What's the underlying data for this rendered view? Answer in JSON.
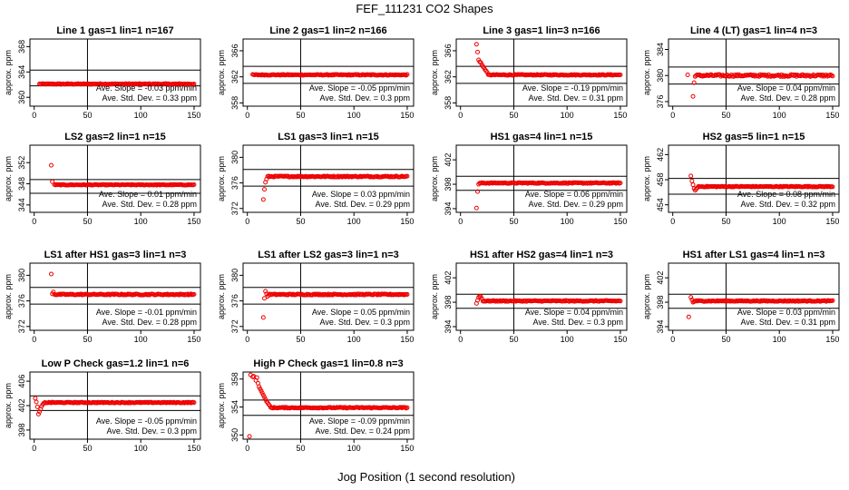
{
  "title": "FEF_111231  CO2 Shapes",
  "xlabel": "Jog Position (1 second resolution)",
  "chart_data": [
    {
      "type": "scatter",
      "title": "Line 1 gas=1 lin=1 n=167",
      "ylabel": "approx. ppm",
      "xlim": [
        -4,
        156
      ],
      "ylim": [
        358.6,
        369.2
      ],
      "yticks": [
        360,
        364,
        368
      ],
      "xticks": [
        0,
        50,
        100,
        150
      ],
      "hlines": [
        364.3,
        361.8
      ],
      "vline": 50,
      "base": 362.1,
      "noise": 0.07,
      "start": 5,
      "end": 150,
      "outliers": [],
      "transient": [],
      "slope_text": "Ave. Slope = -0.03  ppm/min",
      "std_text": "Ave. Std. Dev. = 0.33  ppm"
    },
    {
      "type": "scatter",
      "title": "Line 2 gas=1 lin=2 n=166",
      "ylabel": "approx. ppm",
      "xlim": [
        -4,
        156
      ],
      "ylim": [
        357.5,
        367.8
      ],
      "yticks": [
        358,
        362,
        366
      ],
      "xticks": [
        0,
        50,
        100,
        150
      ],
      "hlines": [
        363.6,
        361.0
      ],
      "vline": 50,
      "base": 362.3,
      "noise": 0.07,
      "start": 5,
      "end": 150,
      "outliers": [],
      "transient": [],
      "slope_text": "Ave. Slope = -0.05  ppm/min",
      "std_text": "Ave. Std. Dev. = 0.3  ppm"
    },
    {
      "type": "scatter",
      "title": "Line 3 gas=1 lin=3 n=166",
      "ylabel": "approx. ppm",
      "xlim": [
        -4,
        156
      ],
      "ylim": [
        357.5,
        367.8
      ],
      "yticks": [
        358,
        362,
        366
      ],
      "xticks": [
        0,
        50,
        100,
        150
      ],
      "hlines": [
        363.6,
        361.0
      ],
      "vline": 50,
      "base": 362.3,
      "noise": 0.07,
      "start": 26,
      "end": 150,
      "outliers": [
        [
          15,
          367.0
        ],
        [
          16,
          365.8
        ],
        [
          17,
          364.6
        ],
        [
          18,
          364.3
        ],
        [
          19,
          364.2
        ]
      ],
      "transient": [
        [
          20,
          363.9
        ],
        [
          21,
          363.6
        ],
        [
          22,
          363.4
        ],
        [
          23,
          363.1
        ],
        [
          24,
          362.9
        ],
        [
          25,
          362.7
        ]
      ],
      "slope_text": "Ave. Slope = -0.19  ppm/min",
      "std_text": "Ave. Std. Dev. = 0.31  ppm"
    },
    {
      "type": "scatter",
      "title": "Line 4 (LT) gas=1 lin=4 n=3",
      "ylabel": "approx. ppm",
      "xlim": [
        -4,
        156
      ],
      "ylim": [
        375.3,
        385.6
      ],
      "yticks": [
        376,
        380,
        384
      ],
      "xticks": [
        0,
        50,
        100,
        150
      ],
      "hlines": [
        381.3,
        378.7
      ],
      "vline": 50,
      "base": 380.0,
      "noise": 0.16,
      "start": 21,
      "end": 150,
      "outliers": [
        [
          14,
          380.1
        ],
        [
          19,
          376.8
        ],
        [
          20,
          378.9
        ]
      ],
      "transient": [],
      "slope_text": "Ave. Slope = 0.04  ppm/min",
      "std_text": "Ave. Std. Dev. = 0.28  ppm"
    },
    {
      "type": "scatter",
      "title": "LS2 gas=2 lin=1 n=15",
      "ylabel": "approx. ppm",
      "xlim": [
        -4,
        156
      ],
      "ylim": [
        342.6,
        355.3
      ],
      "yticks": [
        344,
        348,
        352
      ],
      "xticks": [
        0,
        50,
        100,
        150
      ],
      "hlines": [
        348.8,
        346.2
      ],
      "vline": 50,
      "base": 347.8,
      "noise": 0.07,
      "start": 19,
      "end": 150,
      "outliers": [
        [
          16,
          351.5
        ],
        [
          17,
          348.4
        ]
      ],
      "transient": [],
      "slope_text": "Ave. Slope = 0.01  ppm/min",
      "std_text": "Ave. Std. Dev. = 0.28  ppm"
    },
    {
      "type": "scatter",
      "title": "LS1 gas=3 lin=1 n=15",
      "ylabel": "approx. ppm",
      "xlim": [
        -4,
        156
      ],
      "ylim": [
        371.4,
        381.9
      ],
      "yticks": [
        372,
        376,
        380
      ],
      "xticks": [
        0,
        50,
        100,
        150
      ],
      "hlines": [
        378.1,
        375.5
      ],
      "vline": 50,
      "base": 377.0,
      "noise": 0.09,
      "start": 19,
      "end": 150,
      "outliers": [
        [
          15,
          373.4
        ],
        [
          16,
          375.0
        ],
        [
          17,
          376.1
        ],
        [
          18,
          376.6
        ]
      ],
      "transient": [],
      "slope_text": "Ave. Slope = 0.03  ppm/min",
      "std_text": "Ave. Std. Dev. = 0.29  ppm"
    },
    {
      "type": "scatter",
      "title": "HS1 gas=4 lin=1 n=15",
      "ylabel": "approx. ppm",
      "xlim": [
        -4,
        156
      ],
      "ylim": [
        393.4,
        404.4
      ],
      "yticks": [
        394,
        398,
        402
      ],
      "xticks": [
        0,
        50,
        100,
        150
      ],
      "hlines": [
        399.3,
        397.0
      ],
      "vline": 50,
      "base": 398.2,
      "noise": 0.08,
      "start": 19,
      "end": 150,
      "outliers": [
        [
          15,
          394.1
        ],
        [
          16,
          396.8
        ],
        [
          17,
          398.0
        ],
        [
          18,
          398.2
        ]
      ],
      "transient": [],
      "slope_text": "Ave. Slope = 0.06  ppm/min",
      "std_text": "Ave. Std. Dev. = 0.29  ppm"
    },
    {
      "type": "scatter",
      "title": "HS2 gas=5 lin=1 n=15",
      "ylabel": "approx. ppm",
      "xlim": [
        -4,
        156
      ],
      "ylim": [
        452.8,
        463.5
      ],
      "yticks": [
        454,
        458,
        462
      ],
      "xticks": [
        0,
        50,
        100,
        150
      ],
      "hlines": [
        458.2,
        455.7
      ],
      "vline": 50,
      "base": 456.9,
      "noise": 0.07,
      "start": 24,
      "end": 150,
      "outliers": [
        [
          17,
          458.6
        ],
        [
          18,
          457.8
        ],
        [
          19,
          457.2
        ],
        [
          20,
          456.6
        ],
        [
          21,
          456.3
        ],
        [
          22,
          456.5
        ],
        [
          23,
          456.7
        ]
      ],
      "transient": [],
      "slope_text": "Ave. Slope = 0.08  ppm/min",
      "std_text": "Ave. Std. Dev. = 0.32  ppm"
    },
    {
      "type": "scatter",
      "title": "LS1 after HS1 gas=3 lin=1 n=3",
      "ylabel": "approx. ppm",
      "xlim": [
        -4,
        156
      ],
      "ylim": [
        371.4,
        381.9
      ],
      "yticks": [
        372,
        376,
        380
      ],
      "xticks": [
        0,
        50,
        100,
        150
      ],
      "hlines": [
        378.1,
        375.5
      ],
      "vline": 50,
      "base": 377.0,
      "noise": 0.09,
      "start": 20,
      "end": 150,
      "outliers": [
        [
          16,
          380.2
        ],
        [
          17,
          377.1
        ],
        [
          18,
          377.4
        ],
        [
          19,
          377.0
        ]
      ],
      "transient": [],
      "slope_text": "Ave. Slope = -0.01  ppm/min",
      "std_text": "Ave. Std. Dev. = 0.28  ppm"
    },
    {
      "type": "scatter",
      "title": "LS1 after LS2 gas=3 lin=1 n=3",
      "ylabel": "approx. ppm",
      "xlim": [
        -4,
        156
      ],
      "ylim": [
        371.4,
        381.9
      ],
      "yticks": [
        372,
        376,
        380
      ],
      "xticks": [
        0,
        50,
        100,
        150
      ],
      "hlines": [
        378.1,
        375.5
      ],
      "vline": 50,
      "base": 377.0,
      "noise": 0.09,
      "start": 20,
      "end": 150,
      "outliers": [
        [
          15,
          373.4
        ],
        [
          16,
          376.4
        ],
        [
          17,
          377.5
        ],
        [
          18,
          377.1
        ],
        [
          19,
          376.7
        ]
      ],
      "transient": [],
      "slope_text": "Ave. Slope = 0.05  ppm/min",
      "std_text": "Ave. Std. Dev. = 0.3  ppm"
    },
    {
      "type": "scatter",
      "title": "HS1 after HS2 gas=4 lin=1 n=3",
      "ylabel": "approx. ppm",
      "xlim": [
        -4,
        156
      ],
      "ylim": [
        393.4,
        404.4
      ],
      "yticks": [
        394,
        398,
        402
      ],
      "xticks": [
        0,
        50,
        100,
        150
      ],
      "hlines": [
        399.3,
        397.0
      ],
      "vline": 50,
      "base": 398.2,
      "noise": 0.08,
      "start": 21,
      "end": 150,
      "outliers": [
        [
          15,
          397.8
        ],
        [
          16,
          398.3
        ],
        [
          17,
          398.8
        ],
        [
          18,
          399.0
        ],
        [
          19,
          398.9
        ],
        [
          20,
          398.6
        ]
      ],
      "transient": [],
      "slope_text": "Ave. Slope = 0.04  ppm/min",
      "std_text": "Ave. Std. Dev. = 0.3  ppm"
    },
    {
      "type": "scatter",
      "title": "HS1 after LS1 gas=4 lin=1 n=3",
      "ylabel": "approx. ppm",
      "xlim": [
        -4,
        156
      ],
      "ylim": [
        393.4,
        404.4
      ],
      "yticks": [
        394,
        398,
        402
      ],
      "xticks": [
        0,
        50,
        100,
        150
      ],
      "hlines": [
        399.3,
        397.0
      ],
      "vline": 50,
      "base": 398.2,
      "noise": 0.08,
      "start": 21,
      "end": 150,
      "outliers": [
        [
          15,
          395.6
        ],
        [
          17,
          398.8
        ],
        [
          18,
          398.4
        ],
        [
          19,
          398.0
        ],
        [
          20,
          398.1
        ]
      ],
      "transient": [],
      "slope_text": "Ave. Slope = 0.03  ppm/min",
      "std_text": "Ave. Std. Dev. = 0.31  ppm"
    },
    {
      "type": "scatter",
      "title": "Low P Check gas=1.2 lin=1 n=6",
      "ylabel": "approx. ppm",
      "xlim": [
        -4,
        156
      ],
      "ylim": [
        396.5,
        407.5
      ],
      "yticks": [
        398,
        402,
        406
      ],
      "xticks": [
        0,
        50,
        100,
        150
      ],
      "hlines": [
        403.6,
        401.2
      ],
      "vline": 50,
      "base": 402.5,
      "noise": 0.07,
      "start": 10,
      "end": 150,
      "outliers": [
        [
          1,
          403.2
        ],
        [
          2,
          402.6
        ],
        [
          3,
          401.8
        ],
        [
          4,
          400.6
        ],
        [
          5,
          401.0
        ],
        [
          6,
          401.4
        ],
        [
          7,
          401.9
        ],
        [
          8,
          402.2
        ],
        [
          9,
          402.4
        ]
      ],
      "transient": [],
      "slope_text": "Ave. Slope = -0.05  ppm/min",
      "std_text": "Ave. Std. Dev. = 0.3  ppm"
    },
    {
      "type": "scatter",
      "title": "High P Check gas=1 lin=0.8 n=3",
      "ylabel": "approx. ppm",
      "xlim": [
        -4,
        156
      ],
      "ylim": [
        349.4,
        359.0
      ],
      "yticks": [
        350,
        354,
        358
      ],
      "xticks": [
        0,
        50,
        100,
        150
      ],
      "hlines": [
        355.0,
        352.8
      ],
      "vline": 50,
      "base": 353.9,
      "noise": 0.07,
      "start": 22,
      "end": 150,
      "outliers": [
        [
          2,
          349.8
        ],
        [
          3,
          358.6
        ],
        [
          5,
          358.3
        ],
        [
          6,
          358.4
        ],
        [
          8,
          357.8
        ],
        [
          9,
          358.2
        ],
        [
          10,
          357.4
        ],
        [
          11,
          356.9
        ],
        [
          12,
          356.6
        ],
        [
          13,
          356.3
        ]
      ],
      "transient": [
        [
          14,
          356.0
        ],
        [
          15,
          355.7
        ],
        [
          16,
          355.4
        ],
        [
          17,
          355.1
        ],
        [
          18,
          354.8
        ],
        [
          19,
          354.6
        ],
        [
          20,
          354.4
        ],
        [
          21,
          354.2
        ]
      ],
      "slope_text": "Ave. Slope = -0.09  ppm/min",
      "std_text": "Ave. Std. Dev. = 0.24  ppm"
    }
  ]
}
